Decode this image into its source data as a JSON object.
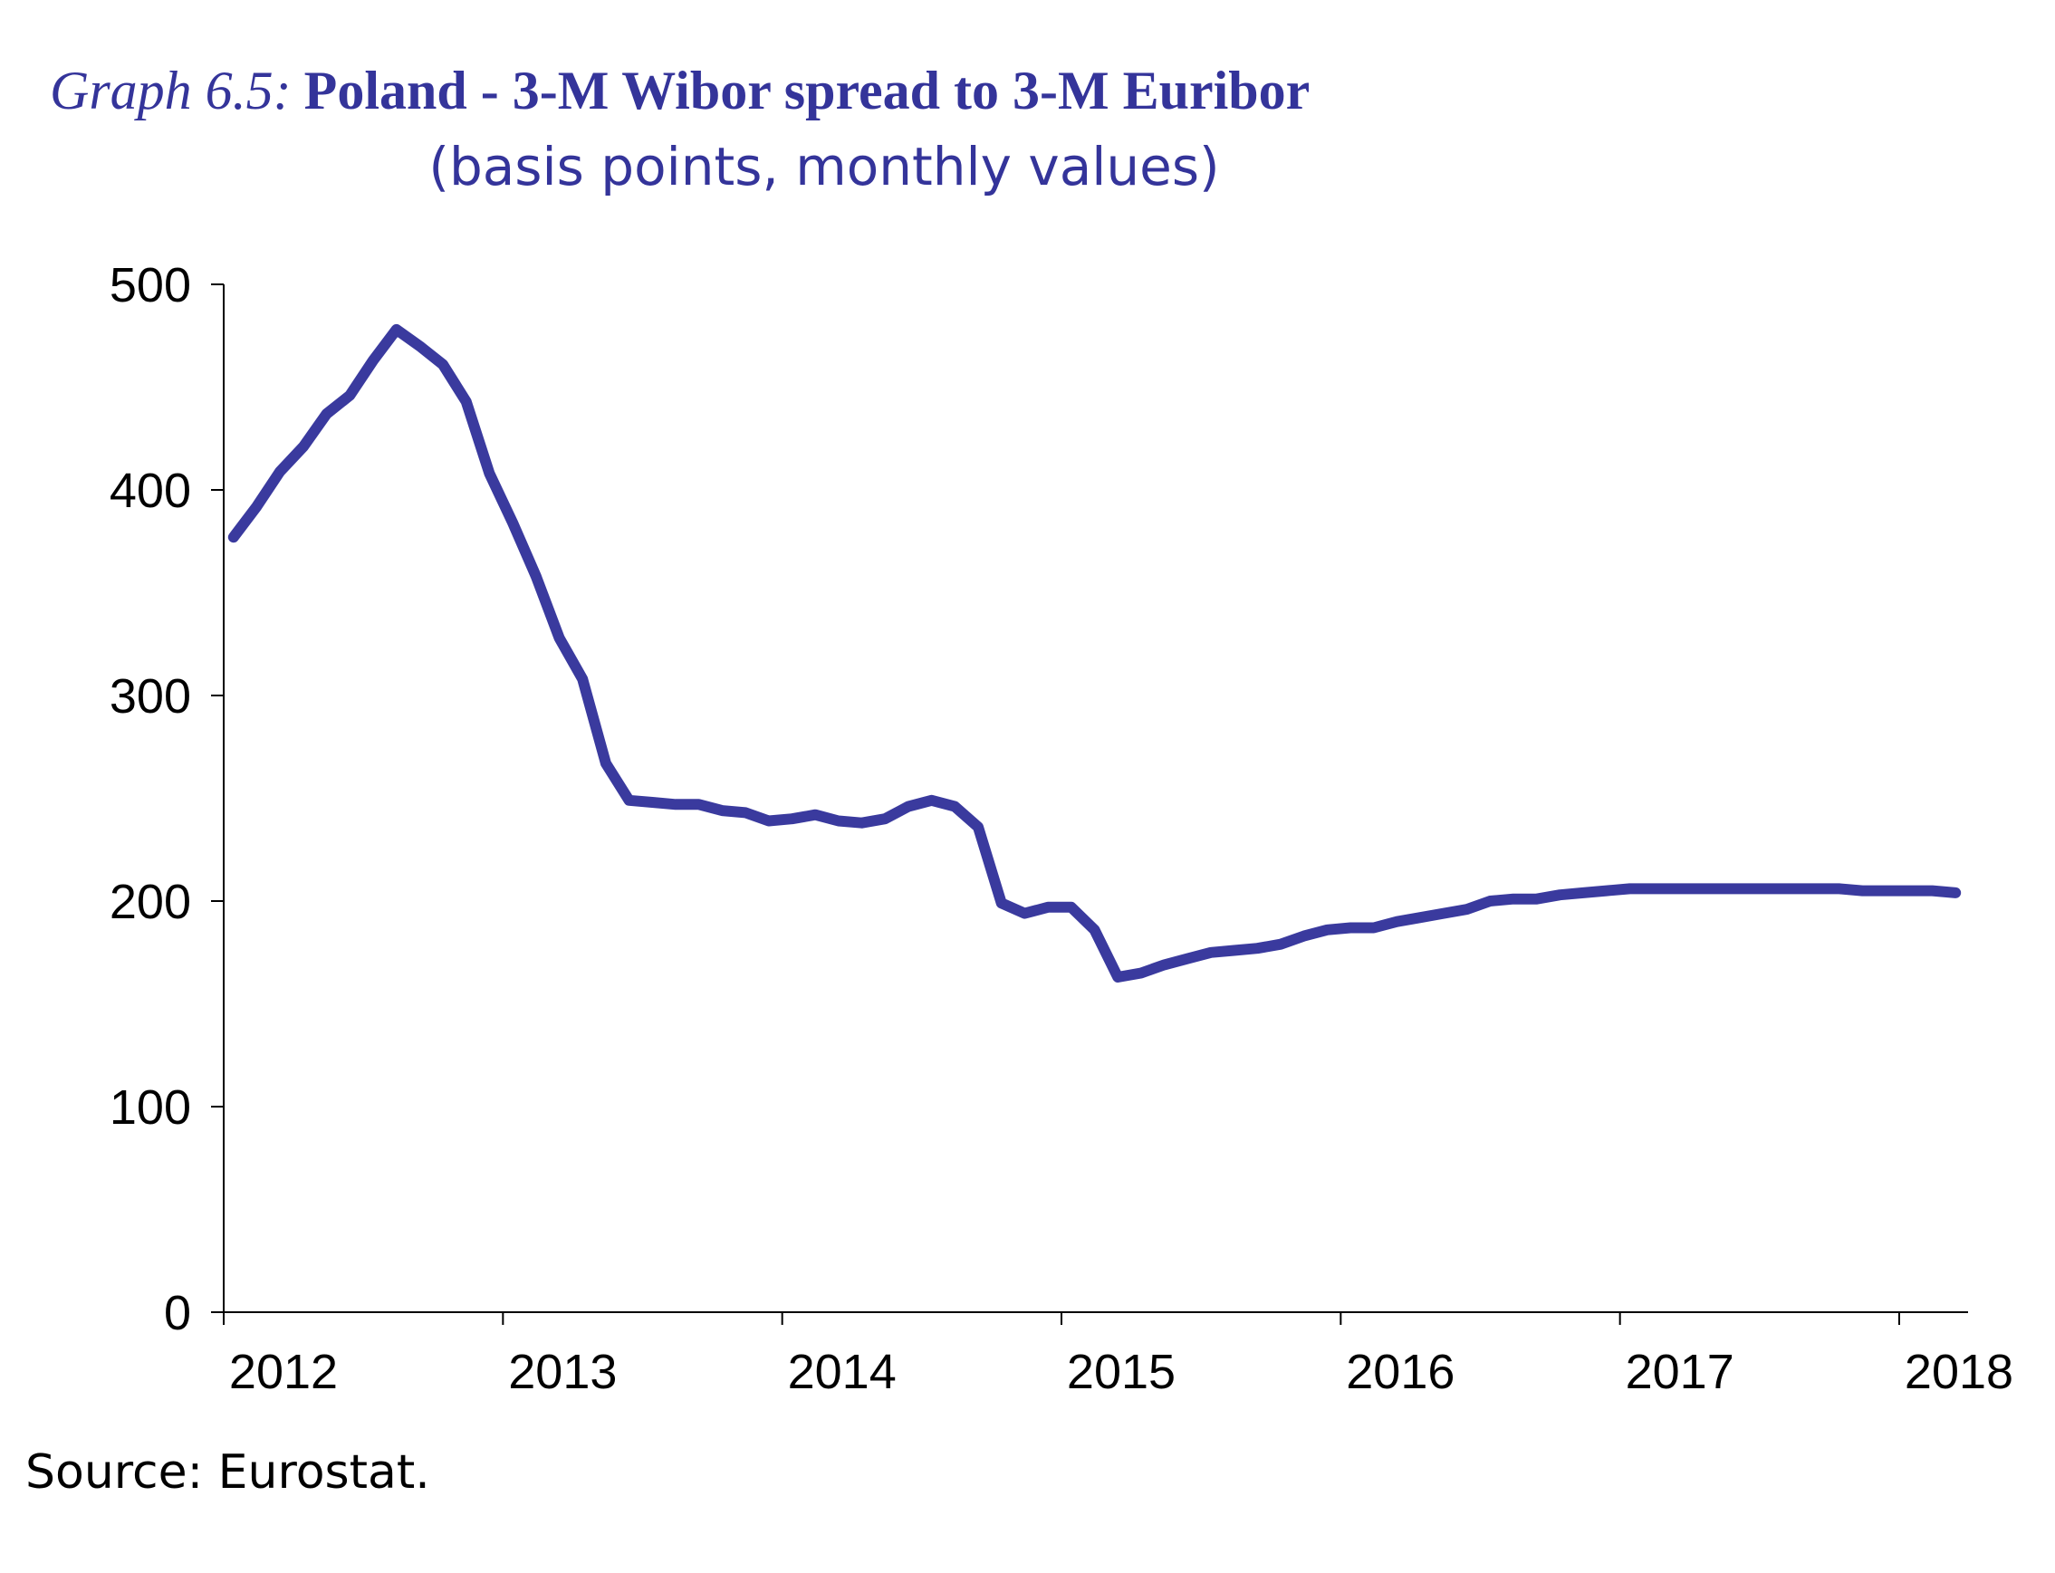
{
  "chart_data": {
    "type": "line",
    "title_prefix": "Graph 6.5:",
    "title": "Poland - 3-M Wibor spread to 3-M Euribor",
    "subtitle": "(basis points, monthly values)",
    "xlabel": "",
    "ylabel": "",
    "ylim": [
      0,
      500
    ],
    "yticks": [
      "0",
      "100",
      "200",
      "300",
      "400",
      "500"
    ],
    "xticks": [
      "2012",
      "2013",
      "2014",
      "2015",
      "2016",
      "2017",
      "2018"
    ],
    "xlim": [
      2012,
      2018.25
    ],
    "grid": false,
    "color": "#3a3a9e",
    "series": [
      {
        "name": "3-M Wibor spread to 3-M Euribor",
        "start": "2012-01",
        "frequency": "monthly",
        "values": [
          377,
          392,
          409,
          421,
          437,
          446,
          463,
          478,
          470,
          461,
          443,
          408,
          384,
          358,
          328,
          308,
          267,
          249,
          248,
          247,
          247,
          244,
          243,
          239,
          240,
          242,
          239,
          238,
          240,
          246,
          249,
          246,
          236,
          199,
          194,
          197,
          197,
          186,
          163,
          165,
          169,
          172,
          175,
          176,
          177,
          179,
          183,
          186,
          187,
          187,
          190,
          192,
          194,
          196,
          200,
          201,
          201,
          203,
          204,
          205,
          206,
          206,
          206,
          206,
          206,
          206,
          206,
          206,
          206,
          206,
          205,
          205,
          205,
          205,
          204
        ]
      }
    ]
  },
  "source": "Source: Eurostat."
}
